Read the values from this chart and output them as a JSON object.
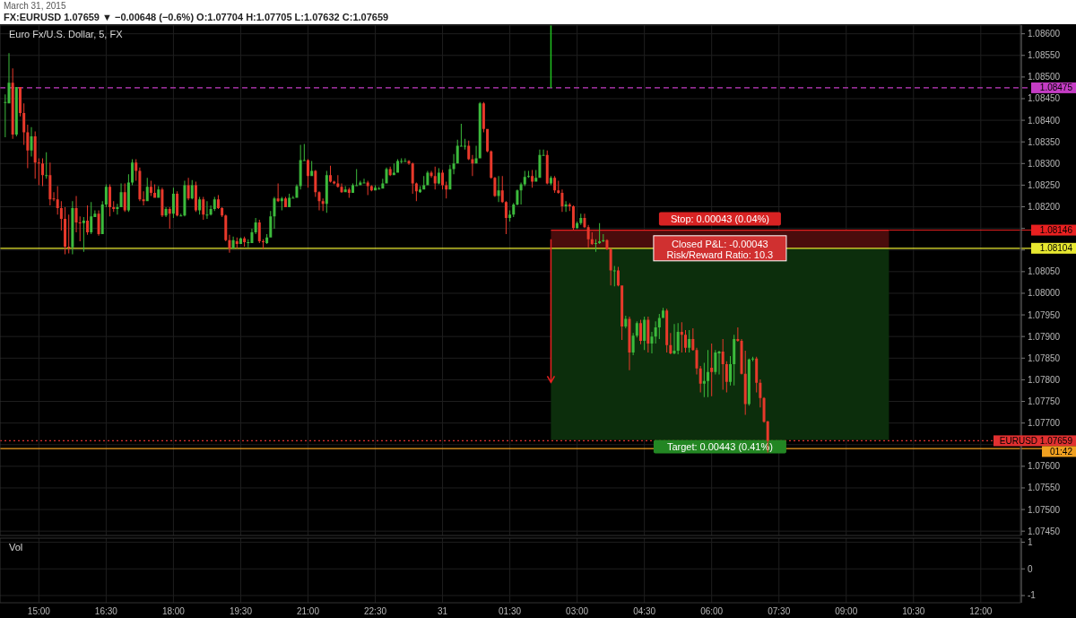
{
  "chart_data": [
    {
      "type": "candlestick",
      "title": "Euro Fx/U.S. Dollar, 5, FX",
      "subtitle": "FX:EURUSD 1.07659 ▼ −0.00648 (−0.6%) O:1.07704 H:1.07705 L:1.07632 C:1.07659",
      "x": [
        "2015-03-30T14:15",
        "2015-03-30T14:20",
        "2015-03-30T14:25",
        "2015-03-30T14:30",
        "2015-03-30T14:35",
        "2015-03-30T14:40",
        "2015-03-30T14:45",
        "2015-03-30T14:50",
        "2015-03-30T14:55",
        "2015-03-30T15:00",
        "2015-03-30T15:05",
        "2015-03-30T15:10",
        "2015-03-30T15:15",
        "2015-03-30T15:20",
        "2015-03-30T15:25",
        "2015-03-30T15:30",
        "2015-03-30T15:35",
        "2015-03-30T15:40",
        "2015-03-30T15:45",
        "2015-03-30T15:50",
        "2015-03-30T15:55",
        "2015-03-30T16:00",
        "2015-03-30T16:05",
        "2015-03-30T16:10",
        "2015-03-30T16:15",
        "2015-03-30T16:20",
        "2015-03-30T16:25",
        "2015-03-30T16:30",
        "2015-03-30T16:35",
        "2015-03-30T16:40",
        "2015-03-30T16:45",
        "2015-03-30T16:50",
        "2015-03-30T16:55",
        "2015-03-30T17:00",
        "2015-03-30T17:05",
        "2015-03-30T17:10",
        "2015-03-30T17:15",
        "2015-03-30T17:20",
        "2015-03-30T17:25",
        "2015-03-30T17:30",
        "2015-03-30T17:35",
        "2015-03-30T17:40",
        "2015-03-30T17:45",
        "2015-03-30T17:50",
        "2015-03-30T17:55",
        "2015-03-30T18:00",
        "2015-03-30T18:05",
        "2015-03-30T18:10",
        "2015-03-30T18:15",
        "2015-03-30T18:20",
        "2015-03-30T18:25",
        "2015-03-30T18:30",
        "2015-03-30T18:35",
        "2015-03-30T18:40",
        "2015-03-30T18:45",
        "2015-03-30T18:50",
        "2015-03-30T18:55",
        "2015-03-30T19:00",
        "2015-03-30T19:05",
        "2015-03-30T19:10",
        "2015-03-30T19:15",
        "2015-03-30T19:20",
        "2015-03-30T19:25",
        "2015-03-30T19:30",
        "2015-03-30T19:35",
        "2015-03-30T19:40",
        "2015-03-30T19:45",
        "2015-03-30T19:50",
        "2015-03-30T19:55",
        "2015-03-30T20:00",
        "2015-03-30T20:05",
        "2015-03-30T20:10",
        "2015-03-30T20:15",
        "2015-03-30T20:20",
        "2015-03-30T20:25",
        "2015-03-30T20:30",
        "2015-03-30T20:35",
        "2015-03-30T20:40",
        "2015-03-30T20:45",
        "2015-03-30T20:50",
        "2015-03-30T20:55",
        "2015-03-30T21:00",
        "2015-03-30T21:05",
        "2015-03-30T21:10",
        "2015-03-30T21:15",
        "2015-03-30T21:20",
        "2015-03-30T21:25",
        "2015-03-30T21:30",
        "2015-03-30T21:35",
        "2015-03-30T21:40",
        "2015-03-30T21:45",
        "2015-03-30T21:50",
        "2015-03-30T21:55",
        "2015-03-30T22:00",
        "2015-03-30T22:05",
        "2015-03-30T22:10",
        "2015-03-30T22:15",
        "2015-03-30T22:20",
        "2015-03-30T22:25",
        "2015-03-30T22:30",
        "2015-03-30T22:35",
        "2015-03-30T22:40",
        "2015-03-30T22:45",
        "2015-03-30T22:50",
        "2015-03-30T22:55",
        "2015-03-30T23:00",
        "2015-03-30T23:05",
        "2015-03-30T23:10",
        "2015-03-30T23:15",
        "2015-03-30T23:20",
        "2015-03-30T23:25",
        "2015-03-30T23:30",
        "2015-03-30T23:35",
        "2015-03-30T23:40",
        "2015-03-30T23:45",
        "2015-03-30T23:50",
        "2015-03-30T23:55",
        "2015-03-31T00:00",
        "2015-03-31T00:05",
        "2015-03-31T00:10",
        "2015-03-31T00:15",
        "2015-03-31T00:20",
        "2015-03-31T00:25",
        "2015-03-31T00:30",
        "2015-03-31T00:35",
        "2015-03-31T00:40",
        "2015-03-31T00:45",
        "2015-03-31T00:50",
        "2015-03-31T00:55",
        "2015-03-31T01:00",
        "2015-03-31T01:05",
        "2015-03-31T01:10",
        "2015-03-31T01:15",
        "2015-03-31T01:20",
        "2015-03-31T01:25",
        "2015-03-31T01:30",
        "2015-03-31T01:35",
        "2015-03-31T01:40",
        "2015-03-31T01:45",
        "2015-03-31T01:50",
        "2015-03-31T01:55",
        "2015-03-31T02:00",
        "2015-03-31T02:05",
        "2015-03-31T02:10",
        "2015-03-31T02:15",
        "2015-03-31T02:20",
        "2015-03-31T02:25",
        "2015-03-31T02:30",
        "2015-03-31T02:35",
        "2015-03-31T02:40",
        "2015-03-31T02:45",
        "2015-03-31T02:50",
        "2015-03-31T02:55",
        "2015-03-31T03:00",
        "2015-03-31T03:05",
        "2015-03-31T03:10",
        "2015-03-31T03:15",
        "2015-03-31T03:20",
        "2015-03-31T03:25",
        "2015-03-31T03:30",
        "2015-03-31T03:35",
        "2015-03-31T03:40",
        "2015-03-31T03:45",
        "2015-03-31T03:50",
        "2015-03-31T03:55",
        "2015-03-31T04:00",
        "2015-03-31T04:05",
        "2015-03-31T04:10",
        "2015-03-31T04:15",
        "2015-03-31T04:20",
        "2015-03-31T04:25",
        "2015-03-31T04:30",
        "2015-03-31T04:35",
        "2015-03-31T04:40",
        "2015-03-31T04:45",
        "2015-03-31T04:50",
        "2015-03-31T04:55",
        "2015-03-31T05:00",
        "2015-03-31T05:05",
        "2015-03-31T05:10",
        "2015-03-31T05:15",
        "2015-03-31T05:20",
        "2015-03-31T05:25",
        "2015-03-31T05:30",
        "2015-03-31T05:35",
        "2015-03-31T05:40",
        "2015-03-31T05:45",
        "2015-03-31T05:50",
        "2015-03-31T05:55",
        "2015-03-31T06:00",
        "2015-03-31T06:05",
        "2015-03-31T06:10",
        "2015-03-31T06:15",
        "2015-03-31T06:20",
        "2015-03-31T06:25",
        "2015-03-31T06:30",
        "2015-03-31T06:35",
        "2015-03-31T06:40",
        "2015-03-31T06:45",
        "2015-03-31T06:50",
        "2015-03-31T06:55",
        "2015-03-31T07:00",
        "2015-03-31T07:05",
        "2015-03-31T07:10",
        "2015-03-31T07:15"
      ],
      "ohlc": [
        [
          1.08442,
          1.0846,
          1.08361,
          1.08442
        ],
        [
          1.08439,
          1.08555,
          1.08439,
          1.08487
        ],
        [
          1.08487,
          1.0852,
          1.08357,
          1.08367
        ],
        [
          1.08367,
          1.08477,
          1.08363,
          1.08477
        ],
        [
          1.08477,
          1.08477,
          1.08409,
          1.08417
        ],
        [
          1.08417,
          1.08439,
          1.08343,
          1.08372
        ],
        [
          1.08372,
          1.0839,
          1.08289,
          1.0833
        ],
        [
          1.0833,
          1.08384,
          1.08316,
          1.08363
        ],
        [
          1.08363,
          1.08374,
          1.08265,
          1.08302
        ],
        [
          1.08302,
          1.08312,
          1.0825,
          1.083
        ],
        [
          1.083,
          1.08312,
          1.08248,
          1.08273
        ],
        [
          1.08273,
          1.08326,
          1.08265,
          1.08273
        ],
        [
          1.08273,
          1.08302,
          1.08203,
          1.08217
        ],
        [
          1.08219,
          1.08234,
          1.08213,
          1.08217
        ],
        [
          1.08217,
          1.08248,
          1.08182,
          1.08197
        ],
        [
          1.08197,
          1.08213,
          1.08145,
          1.08172
        ],
        [
          1.08172,
          1.08199,
          1.0809,
          1.08108
        ],
        [
          1.08108,
          1.08182,
          1.08092,
          1.08106
        ],
        [
          1.08106,
          1.08213,
          1.0809,
          1.08197
        ],
        [
          1.08197,
          1.08225,
          1.08141,
          1.08164
        ],
        [
          1.08164,
          1.08178,
          1.0812,
          1.08162
        ],
        [
          1.08162,
          1.08176,
          1.08096,
          1.08168
        ],
        [
          1.08168,
          1.08203,
          1.08135,
          1.08141
        ],
        [
          1.08141,
          1.08211,
          1.08137,
          1.08178
        ],
        [
          1.08176,
          1.08192,
          1.08176,
          1.08184
        ],
        [
          1.08184,
          1.08192,
          1.08133,
          1.08137
        ],
        [
          1.08137,
          1.08213,
          1.08137,
          1.08205
        ],
        [
          1.08205,
          1.08252,
          1.08199,
          1.08246
        ],
        [
          1.08246,
          1.08252,
          1.08178,
          1.08199
        ],
        [
          1.08199,
          1.08213,
          1.08188,
          1.08195
        ],
        [
          1.08195,
          1.08207,
          1.08182,
          1.08199
        ],
        [
          1.08199,
          1.08254,
          1.08199,
          1.08234
        ],
        [
          1.08234,
          1.08254,
          1.08188,
          1.08192
        ],
        [
          1.08192,
          1.08275,
          1.08188,
          1.08256
        ],
        [
          1.08256,
          1.0831,
          1.0825,
          1.08302
        ],
        [
          1.08302,
          1.0831,
          1.0826,
          1.08283
        ],
        [
          1.08283,
          1.08291,
          1.08213,
          1.08217
        ],
        [
          1.08217,
          1.08236,
          1.08203,
          1.08213
        ],
        [
          1.08213,
          1.08267,
          1.08213,
          1.08246
        ],
        [
          1.08246,
          1.0826,
          1.08225,
          1.08232
        ],
        [
          1.08232,
          1.08252,
          1.08221,
          1.08221
        ],
        [
          1.08221,
          1.08248,
          1.08221,
          1.0824
        ],
        [
          1.0824,
          1.08244,
          1.08176,
          1.0818
        ],
        [
          1.0818,
          1.08199,
          1.08176,
          1.08195
        ],
        [
          1.08195,
          1.08199,
          1.08149,
          1.08184
        ],
        [
          1.08184,
          1.08244,
          1.08174,
          1.0823
        ],
        [
          1.0823,
          1.08236,
          1.08178,
          1.0818
        ],
        [
          1.0818,
          1.08184,
          1.08178,
          1.0818
        ],
        [
          1.0818,
          1.0826,
          1.08178,
          1.0825
        ],
        [
          1.0825,
          1.08267,
          1.08215,
          1.08219
        ],
        [
          1.08219,
          1.08262,
          1.08217,
          1.0825
        ],
        [
          1.0825,
          1.08258,
          1.08188,
          1.08192
        ],
        [
          1.08192,
          1.08223,
          1.08182,
          1.08217
        ],
        [
          1.08217,
          1.08223,
          1.0817,
          1.08182
        ],
        [
          1.08182,
          1.08213,
          1.08172,
          1.08182
        ],
        [
          1.08182,
          1.08203,
          1.0818,
          1.08195
        ],
        [
          1.08195,
          1.08223,
          1.0819,
          1.08217
        ],
        [
          1.08217,
          1.08227,
          1.08195,
          1.08197
        ],
        [
          1.08197,
          1.08199,
          1.08176,
          1.0818
        ],
        [
          1.0818,
          1.08182,
          1.0812,
          1.08123
        ],
        [
          1.08123,
          1.08135,
          1.08094,
          1.08104
        ],
        [
          1.08104,
          1.08131,
          1.08102,
          1.08123
        ],
        [
          1.0812,
          1.08129,
          1.08104,
          1.08114
        ],
        [
          1.08114,
          1.08129,
          1.08114,
          1.08127
        ],
        [
          1.08127,
          1.08131,
          1.08108,
          1.08118
        ],
        [
          1.08118,
          1.08125,
          1.08106,
          1.08118
        ],
        [
          1.08116,
          1.08149,
          1.08116,
          1.08141
        ],
        [
          1.08141,
          1.08174,
          1.08137,
          1.08164
        ],
        [
          1.08164,
          1.0817,
          1.08116,
          1.0812
        ],
        [
          1.0812,
          1.08125,
          1.08102,
          1.08118
        ],
        [
          1.08116,
          1.08137,
          1.08114,
          1.08129
        ],
        [
          1.08129,
          1.0819,
          1.08129,
          1.08178
        ],
        [
          1.08178,
          1.08223,
          1.08149,
          1.08219
        ],
        [
          1.08219,
          1.08254,
          1.08211,
          1.08213
        ],
        [
          1.08213,
          1.08223,
          1.08192,
          1.08219
        ],
        [
          1.08219,
          1.08223,
          1.08199,
          1.08199
        ],
        [
          1.08199,
          1.0823,
          1.08199,
          1.08221
        ],
        [
          1.08221,
          1.08225,
          1.08219,
          1.08221
        ],
        [
          1.08221,
          1.08252,
          1.08221,
          1.08248
        ],
        [
          1.08248,
          1.08343,
          1.0824,
          1.08308
        ],
        [
          1.08308,
          1.08345,
          1.08306,
          1.08308
        ],
        [
          1.08308,
          1.0831,
          1.08244,
          1.08271
        ],
        [
          1.08271,
          1.08306,
          1.08271,
          1.08283
        ],
        [
          1.08283,
          1.08285,
          1.08223,
          1.08234
        ],
        [
          1.08234,
          1.08236,
          1.08192,
          1.08213
        ],
        [
          1.08213,
          1.08219,
          1.0819,
          1.08207
        ],
        [
          1.08207,
          1.08283,
          1.08186,
          1.08273
        ],
        [
          1.08273,
          1.08295,
          1.08256,
          1.08258
        ],
        [
          1.08258,
          1.0826,
          1.08252,
          1.08254
        ],
        [
          1.08254,
          1.08273,
          1.08244,
          1.08246
        ],
        [
          1.08246,
          1.08254,
          1.08232,
          1.08234
        ],
        [
          1.08234,
          1.08248,
          1.08234,
          1.0824
        ],
        [
          1.0824,
          1.08244,
          1.08221,
          1.08232
        ],
        [
          1.08232,
          1.08254,
          1.08232,
          1.0825
        ],
        [
          1.0825,
          1.08287,
          1.08248,
          1.0825
        ],
        [
          1.0825,
          1.0826,
          1.0825,
          1.08256
        ],
        [
          1.08256,
          1.08265,
          1.08254,
          1.08256
        ],
        [
          1.08256,
          1.0826,
          1.08227,
          1.08248
        ],
        [
          1.08248,
          1.0825,
          1.08236,
          1.08238
        ],
        [
          1.08238,
          1.0825,
          1.08238,
          1.08244
        ],
        [
          1.08242,
          1.08246,
          1.0824,
          1.08242
        ],
        [
          1.08242,
          1.08265,
          1.08242,
          1.08254
        ],
        [
          1.08254,
          1.08291,
          1.08254,
          1.08287
        ],
        [
          1.08287,
          1.08293,
          1.08271,
          1.08273
        ],
        [
          1.08273,
          1.083,
          1.08273,
          1.08279
        ],
        [
          1.08279,
          1.0831,
          1.08279,
          1.08306
        ],
        [
          1.08306,
          1.08312,
          1.083,
          1.08306
        ],
        [
          1.08306,
          1.08312,
          1.08304,
          1.08306
        ],
        [
          1.08306,
          1.08308,
          1.08297,
          1.083
        ],
        [
          1.083,
          1.08302,
          1.0823,
          1.08254
        ],
        [
          1.08254,
          1.08256,
          1.08213,
          1.08236
        ],
        [
          1.08234,
          1.08248,
          1.08232,
          1.0824
        ],
        [
          1.0824,
          1.08271,
          1.0824,
          1.0825
        ],
        [
          1.0825,
          1.08283,
          1.0825,
          1.08279
        ],
        [
          1.08279,
          1.08283,
          1.08267,
          1.08271
        ],
        [
          1.08271,
          1.08293,
          1.0824,
          1.08254
        ],
        [
          1.08254,
          1.08289,
          1.08252,
          1.08279
        ],
        [
          1.08279,
          1.08285,
          1.0824,
          1.0825
        ],
        [
          1.0825,
          1.08258,
          1.08219,
          1.0824
        ],
        [
          1.0824,
          1.08297,
          1.0824,
          1.08287
        ],
        [
          1.08287,
          1.08322,
          1.08275,
          1.083
        ],
        [
          1.083,
          1.08355,
          1.083,
          1.08341
        ],
        [
          1.08341,
          1.08392,
          1.08339,
          1.08341
        ],
        [
          1.08341,
          1.08357,
          1.08332,
          1.08341
        ],
        [
          1.08341,
          1.08353,
          1.08308,
          1.0831
        ],
        [
          1.0831,
          1.0832,
          1.08271,
          1.083
        ],
        [
          1.083,
          1.08341,
          1.083,
          1.08312
        ],
        [
          1.08312,
          1.08442,
          1.08312,
          1.08439
        ],
        [
          1.08439,
          1.08442,
          1.08372,
          1.0838
        ],
        [
          1.0838,
          1.0838,
          1.08326,
          1.08328
        ],
        [
          1.08328,
          1.0833,
          1.08265,
          1.08267
        ],
        [
          1.08267,
          1.08269,
          1.08223,
          1.08225
        ],
        [
          1.08225,
          1.08271,
          1.08211,
          1.08238
        ],
        [
          1.08238,
          1.08271,
          1.08209,
          1.08211
        ],
        [
          1.08211,
          1.08213,
          1.08137,
          1.08174
        ],
        [
          1.08174,
          1.08192,
          1.08166,
          1.08182
        ],
        [
          1.08182,
          1.08209,
          1.08176,
          1.08205
        ],
        [
          1.08205,
          1.0824,
          1.08203,
          1.08238
        ],
        [
          1.08238,
          1.08256,
          1.08205,
          1.08252
        ],
        [
          1.08252,
          1.08283,
          1.08248,
          1.08269
        ],
        [
          1.08269,
          1.08283,
          1.08267,
          1.08271
        ],
        [
          1.08271,
          1.08285,
          1.08244,
          1.08258
        ],
        [
          1.08258,
          1.08285,
          1.08258,
          1.08267
        ],
        [
          1.08267,
          1.08332,
          1.08267,
          1.0832
        ],
        [
          1.0832,
          1.08332,
          1.08318,
          1.0832
        ],
        [
          1.0832,
          1.0833,
          1.08252,
          1.08254
        ],
        [
          1.08254,
          1.08271,
          1.0825,
          1.08267
        ],
        [
          1.08267,
          1.08271,
          1.08232,
          1.08238
        ],
        [
          1.08238,
          1.0826,
          1.0823,
          1.08232
        ],
        [
          1.08232,
          1.0824,
          1.08188,
          1.08201
        ],
        [
          1.08201,
          1.08213,
          1.08188,
          1.08205
        ],
        [
          1.08205,
          1.08209,
          1.0819,
          1.08201
        ],
        [
          1.08201,
          1.08203,
          1.08147,
          1.08151
        ],
        [
          1.08151,
          1.08166,
          1.08149,
          1.08162
        ],
        [
          1.08162,
          1.08184,
          1.08158,
          1.08174
        ],
        [
          1.08174,
          1.08184,
          1.08151,
          1.08153
        ],
        [
          1.08153,
          1.08158,
          1.08106,
          1.08125
        ],
        [
          1.08125,
          1.08141,
          1.08112,
          1.08114
        ],
        [
          1.08116,
          1.08125,
          1.08096,
          1.08116
        ],
        [
          1.08116,
          1.08162,
          1.08114,
          1.0812
        ],
        [
          1.0812,
          1.08137,
          1.08118,
          1.08123
        ],
        [
          1.08123,
          1.08125,
          1.081,
          1.08102
        ],
        [
          1.08102,
          1.08104,
          1.08018,
          1.08053
        ],
        [
          1.08053,
          1.08063,
          1.08016,
          1.08053
        ],
        [
          1.08053,
          1.08061,
          1.08016,
          1.08018
        ],
        [
          1.08018,
          1.08018,
          1.07892,
          1.07923
        ],
        [
          1.07923,
          1.07948,
          1.07919,
          1.07941
        ],
        [
          1.07941,
          1.07946,
          1.07822,
          1.07863
        ],
        [
          1.07863,
          1.07908,
          1.07857,
          1.07902
        ],
        [
          1.07902,
          1.07935,
          1.07898,
          1.07931
        ],
        [
          1.07931,
          1.07939,
          1.07882,
          1.0789
        ],
        [
          1.0789,
          1.07946,
          1.07869,
          1.07939
        ],
        [
          1.07939,
          1.07946,
          1.07863,
          1.07884
        ],
        [
          1.07884,
          1.07911,
          1.07861,
          1.079
        ],
        [
          1.079,
          1.07935,
          1.07884,
          1.07921
        ],
        [
          1.07921,
          1.07952,
          1.07894,
          1.07943
        ],
        [
          1.07943,
          1.07966,
          1.07943,
          1.0796
        ],
        [
          1.0796,
          1.07964,
          1.07863,
          1.0788
        ],
        [
          1.0788,
          1.07908,
          1.07859,
          1.07861
        ],
        [
          1.07861,
          1.07929,
          1.07859,
          1.07867
        ],
        [
          1.07867,
          1.07931,
          1.07859,
          1.07911
        ],
        [
          1.07911,
          1.07933,
          1.07863,
          1.07904
        ],
        [
          1.07904,
          1.07915,
          1.07863,
          1.07874
        ],
        [
          1.07874,
          1.07915,
          1.07863,
          1.07894
        ],
        [
          1.07894,
          1.07919,
          1.07867,
          1.07869
        ],
        [
          1.07869,
          1.07874,
          1.07812,
          1.07826
        ],
        [
          1.07826,
          1.07832,
          1.07771,
          1.07791
        ],
        [
          1.07791,
          1.07839,
          1.0776,
          1.07797
        ],
        [
          1.07797,
          1.07869,
          1.0776,
          1.07818
        ],
        [
          1.07828,
          1.07884,
          1.07762,
          1.07818
        ],
        [
          1.07818,
          1.07869,
          1.07812,
          1.07863
        ],
        [
          1.07861,
          1.07867,
          1.07812,
          1.07865
        ],
        [
          1.07865,
          1.07894,
          1.07777,
          1.07836
        ],
        [
          1.07836,
          1.07843,
          1.07771,
          1.07795
        ],
        [
          1.07795,
          1.07855,
          1.07787,
          1.07836
        ],
        [
          1.07836,
          1.07904,
          1.07787,
          1.07894
        ],
        [
          1.07894,
          1.07921,
          1.07888,
          1.0789
        ],
        [
          1.0789,
          1.07894,
          1.07812,
          1.07814
        ],
        [
          1.07814,
          1.07867,
          1.07719,
          1.07744
        ],
        [
          1.07744,
          1.07849,
          1.0774,
          1.07847
        ],
        [
          1.07847,
          1.07853,
          1.07843,
          1.07849
        ],
        [
          1.07849,
          1.07853,
          1.07771,
          1.07793
        ],
        [
          1.07793,
          1.07801,
          1.07736,
          1.07758
        ],
        [
          1.07758,
          1.0776,
          1.07701,
          1.07703
        ],
        [
          1.07704,
          1.07705,
          1.07632,
          1.07659
        ]
      ],
      "xlim": [
        "2015-03-30T14:08",
        "2015-03-31T12:53"
      ],
      "xticks": [
        {
          "value": "2015-03-30T15:00",
          "label": null
        },
        {
          "value": "2015-03-30T16:30",
          "label": null
        },
        {
          "value": "2015-03-30T18:00",
          "label": null
        },
        {
          "value": "2015-03-30T19:30",
          "label": null
        },
        {
          "value": "2015-03-30T21:00",
          "label": null
        },
        {
          "value": "2015-03-30T22:30",
          "label": null
        },
        {
          "value": "2015-03-31T00:00",
          "label": null
        },
        {
          "value": "2015-03-31T01:30",
          "label": null
        },
        {
          "value": "2015-03-31T03:00",
          "label": null
        },
        {
          "value": "2015-03-31T04:30",
          "label": null
        },
        {
          "value": "2015-03-31T06:00",
          "label": null
        },
        {
          "value": "2015-03-31T07:30",
          "label": null
        },
        {
          "value": "2015-03-31T09:00",
          "label": null
        },
        {
          "value": "2015-03-31T10:30",
          "label": null
        },
        {
          "value": "2015-03-31T12:00",
          "label": null
        }
      ],
      "ylim": [
        1.0744,
        1.0862
      ],
      "yticks": [
        {
          "value": 1.0745,
          "label": "1.07450"
        },
        {
          "value": 1.075,
          "label": "1.07500"
        },
        {
          "value": 1.0755,
          "label": "1.07550"
        },
        {
          "value": 1.076,
          "label": "1.07600"
        },
        {
          "value": 1.0765,
          "label": null
        },
        {
          "value": 1.077,
          "label": "1.07700"
        },
        {
          "value": 1.0775,
          "label": "1.07750"
        },
        {
          "value": 1.078,
          "label": "1.07800"
        },
        {
          "value": 1.0785,
          "label": "1.07850"
        },
        {
          "value": 1.079,
          "label": "1.07900"
        },
        {
          "value": 1.0795,
          "label": "1.07950"
        },
        {
          "value": 1.08,
          "label": "1.08000"
        },
        {
          "value": 1.0805,
          "label": "1.08050"
        },
        {
          "value": 1.081,
          "label": null
        },
        {
          "value": 1.0815,
          "label": null
        },
        {
          "value": 1.082,
          "label": "1.08200"
        },
        {
          "value": 1.0825,
          "label": "1.08250"
        },
        {
          "value": 1.083,
          "label": "1.08300"
        },
        {
          "value": 1.0835,
          "label": "1.08350"
        },
        {
          "value": 1.084,
          "label": "1.08400"
        },
        {
          "value": 1.0845,
          "label": "1.08450"
        },
        {
          "value": 1.085,
          "label": "1.08500"
        },
        {
          "value": 1.0855,
          "label": "1.08550"
        },
        {
          "value": 1.086,
          "label": "1.08600"
        }
      ],
      "grid": true,
      "tick_labels": "y",
      "ref_lines": [
        {
          "axis": "y",
          "value": 1.08475,
          "label": "1.08475",
          "color": "#c43cc4",
          "line_style": "dashed"
        },
        {
          "axis": "y",
          "value": 1.08146,
          "label": "1.08146",
          "color": "#e82020",
          "line_style": "solid"
        },
        {
          "axis": "y",
          "value": 1.08104,
          "label": "1.08104",
          "color": "#e8e830",
          "line_style": "solid"
        },
        {
          "axis": "y",
          "value": 1.07659,
          "label": "EURUSD 1.07659",
          "color": "#e03030",
          "line_style": "dotted"
        },
        {
          "axis": "y",
          "value": 1.07641,
          "label": "01:42",
          "color": "#f0a020",
          "line_style": "solid"
        },
        {
          "axis": "x",
          "value": "2015-03-31T02:25",
          "color": "#20c020",
          "line_style": "solid"
        }
      ],
      "bands": [
        {
          "axis": "y",
          "from": 1.08104,
          "to": 1.08146,
          "label": "Stop: 0.00043 (0.04%)",
          "color": "#4a0c0c"
        },
        {
          "axis": "y",
          "from": 1.08104,
          "to": 1.07661,
          "label": "Target: 0.00443 (0.41%)",
          "color": "#0c2e0c"
        }
      ],
      "annotations": [
        "March 31, 2015",
        "Closed P&L: -0.00043",
        "Risk/Reward Ratio: 10.3"
      ]
    },
    {
      "type": "bar",
      "title": "Vol",
      "xlim": [
        "2015-03-30T14:08",
        "2015-03-31T12:53"
      ],
      "xticks": [
        {
          "value": "2015-03-30T15:00",
          "label": "15:00"
        },
        {
          "value": "2015-03-30T16:30",
          "label": "16:30"
        },
        {
          "value": "2015-03-30T18:00",
          "label": "18:00"
        },
        {
          "value": "2015-03-30T19:30",
          "label": "19:30"
        },
        {
          "value": "2015-03-30T21:00",
          "label": "21:00"
        },
        {
          "value": "2015-03-30T22:30",
          "label": "22:30"
        },
        {
          "value": "2015-03-31T00:00",
          "label": "31"
        },
        {
          "value": "2015-03-31T01:30",
          "label": "01:30"
        },
        {
          "value": "2015-03-31T03:00",
          "label": "03:00"
        },
        {
          "value": "2015-03-31T04:30",
          "label": "04:30"
        },
        {
          "value": "2015-03-31T06:00",
          "label": "06:00"
        },
        {
          "value": "2015-03-31T07:30",
          "label": "07:30"
        },
        {
          "value": "2015-03-31T09:00",
          "label": "09:00"
        },
        {
          "value": "2015-03-31T10:30",
          "label": "10:30"
        },
        {
          "value": "2015-03-31T12:00",
          "label": "12:00"
        }
      ],
      "ylim": [
        -1.27,
        1.15
      ],
      "yticks": [
        {
          "value": -1,
          "label": "-1"
        },
        0,
        1
      ],
      "grid": true
    }
  ]
}
